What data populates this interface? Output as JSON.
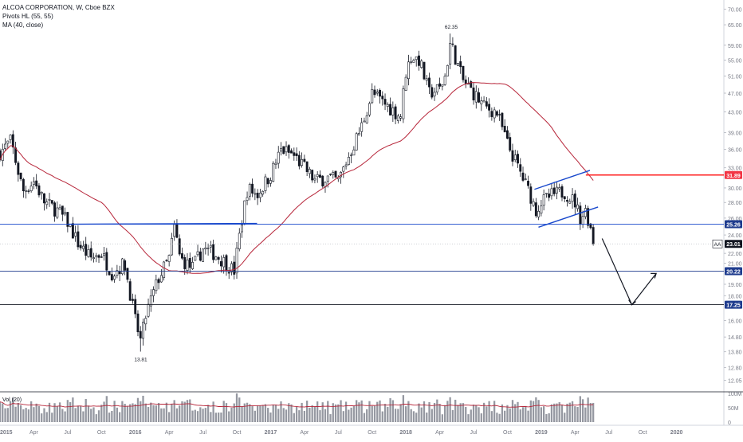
{
  "legend": {
    "title": "ALCOA CORPORATION, W, Cboe BZX",
    "pivots": "Pivots HL (55, 55)",
    "ma": "MA (40, close)"
  },
  "chart_data": {
    "type": "candlestick",
    "price_axis": {
      "scale": "log",
      "range": [
        11.5,
        72
      ],
      "ticks": [
        "70.00",
        "65.00",
        "59.00",
        "55.00",
        "51.00",
        "47.00",
        "43.00",
        "39.00",
        "36.00",
        "33.00",
        "30.00",
        "28.00",
        "26.00",
        "24.00",
        "22.00",
        "21.00",
        "19.00",
        "18.00",
        "16.00",
        "14.80",
        "13.80",
        "12.80",
        "12.05"
      ]
    },
    "time_axis": {
      "labels": [
        {
          "label": "2015",
          "t": 2015.0
        },
        {
          "label": "Apr",
          "t": 2015.25
        },
        {
          "label": "Jul",
          "t": 2015.5
        },
        {
          "label": "Oct",
          "t": 2015.75
        },
        {
          "label": "2016",
          "t": 2016.0
        },
        {
          "label": "Apr",
          "t": 2016.25
        },
        {
          "label": "Jul",
          "t": 2016.5
        },
        {
          "label": "Oct",
          "t": 2016.75
        },
        {
          "label": "2017",
          "t": 2017.0
        },
        {
          "label": "Apr",
          "t": 2017.25
        },
        {
          "label": "Jul",
          "t": 2017.5
        },
        {
          "label": "Oct",
          "t": 2017.75
        },
        {
          "label": "2018",
          "t": 2018.0
        },
        {
          "label": "Apr",
          "t": 2018.25
        },
        {
          "label": "Jul",
          "t": 2018.5
        },
        {
          "label": "Oct",
          "t": 2018.75
        },
        {
          "label": "2019",
          "t": 2019.0
        },
        {
          "label": "Apr",
          "t": 2019.25
        },
        {
          "label": "Jul",
          "t": 2019.5
        },
        {
          "label": "Oct",
          "t": 2019.75
        },
        {
          "label": "2020",
          "t": 2020.0
        }
      ],
      "range": [
        2015.0,
        2020.35
      ]
    },
    "price_path": [
      [
        2015.0,
        35.5
      ],
      [
        2015.08,
        37.5
      ],
      [
        2015.17,
        29.5
      ],
      [
        2015.25,
        31
      ],
      [
        2015.33,
        28
      ],
      [
        2015.42,
        27
      ],
      [
        2015.5,
        25.5
      ],
      [
        2015.58,
        23
      ],
      [
        2015.67,
        21.5
      ],
      [
        2015.75,
        22
      ],
      [
        2015.83,
        20
      ],
      [
        2015.92,
        21
      ],
      [
        2016.0,
        16
      ],
      [
        2016.04,
        14.5
      ],
      [
        2016.08,
        16.5
      ],
      [
        2016.17,
        19.5
      ],
      [
        2016.25,
        21.5
      ],
      [
        2016.29,
        25
      ],
      [
        2016.33,
        21.5
      ],
      [
        2016.42,
        20.5
      ],
      [
        2016.5,
        22.5
      ],
      [
        2016.58,
        22
      ],
      [
        2016.67,
        21
      ],
      [
        2016.73,
        20.2
      ],
      [
        2016.78,
        25
      ],
      [
        2016.83,
        30
      ],
      [
        2016.9,
        29
      ],
      [
        2017.0,
        32
      ],
      [
        2017.08,
        36
      ],
      [
        2017.17,
        35
      ],
      [
        2017.25,
        33
      ],
      [
        2017.33,
        31
      ],
      [
        2017.42,
        31.5
      ],
      [
        2017.5,
        31
      ],
      [
        2017.58,
        35
      ],
      [
        2017.67,
        40
      ],
      [
        2017.75,
        47
      ],
      [
        2017.83,
        45
      ],
      [
        2017.92,
        43
      ],
      [
        2017.96,
        42
      ],
      [
        2018.0,
        52
      ],
      [
        2018.04,
        56
      ],
      [
        2018.1,
        55
      ],
      [
        2018.17,
        47
      ],
      [
        2018.25,
        48
      ],
      [
        2018.29,
        51
      ],
      [
        2018.33,
        60
      ],
      [
        2018.38,
        54
      ],
      [
        2018.42,
        50
      ],
      [
        2018.5,
        47
      ],
      [
        2018.58,
        44
      ],
      [
        2018.67,
        43
      ],
      [
        2018.75,
        37
      ],
      [
        2018.83,
        33
      ],
      [
        2018.92,
        29
      ],
      [
        2018.96,
        27
      ],
      [
        2019.0,
        28
      ],
      [
        2019.08,
        29
      ],
      [
        2019.17,
        29.5
      ],
      [
        2019.25,
        28
      ],
      [
        2019.29,
        26
      ],
      [
        2019.33,
        27
      ],
      [
        2019.37,
        24.5
      ],
      [
        2019.4,
        23.01
      ]
    ],
    "ma_label": "MA (40, close)",
    "pivot_labels": [
      {
        "text": "62.35",
        "t": 2018.335,
        "price": 62.35,
        "position": "above"
      },
      {
        "text": "13.81",
        "t": 2016.04,
        "price": 13.81,
        "position": "below"
      }
    ],
    "horizontal_levels": [
      {
        "value": 31.89,
        "label": "31.89",
        "color": "#ff1e1e",
        "badge": "#f23645",
        "start_t": 2019.33
      },
      {
        "value": 25.26,
        "label": "25.26",
        "color": "#1848cc",
        "badge": "#1f3c8e",
        "start_t": 2015.0
      },
      {
        "value": 20.22,
        "label": "20.22",
        "color": "#1f3c8e",
        "badge": "#1f3c8e",
        "start_t": 2015.0
      },
      {
        "value": 17.25,
        "label": "17.25",
        "color": "#131722",
        "badge": "#1f3c8e",
        "start_t": 2015.0
      }
    ],
    "current_price": {
      "value": 23.01,
      "label": "23.01",
      "prefix": "AA"
    },
    "trendlines": [
      {
        "points": [
          [
            2015.5,
            25.26
          ],
          [
            2016.9,
            25.35
          ]
        ],
        "color": "#1848cc"
      },
      {
        "points": [
          [
            2018.95,
            29.8
          ],
          [
            2019.36,
            32.6
          ]
        ],
        "color": "#1848cc"
      },
      {
        "points": [
          [
            2018.98,
            24.9
          ],
          [
            2019.42,
            27.4
          ]
        ],
        "color": "#1848cc"
      }
    ],
    "projection": [
      [
        2019.45,
        23.6
      ],
      [
        2019.67,
        17.25
      ],
      [
        2019.85,
        20.0
      ]
    ],
    "volume": {
      "label": "Vol (20)",
      "ticks": [
        "100M",
        "50M",
        "0"
      ],
      "max": 100
    }
  }
}
